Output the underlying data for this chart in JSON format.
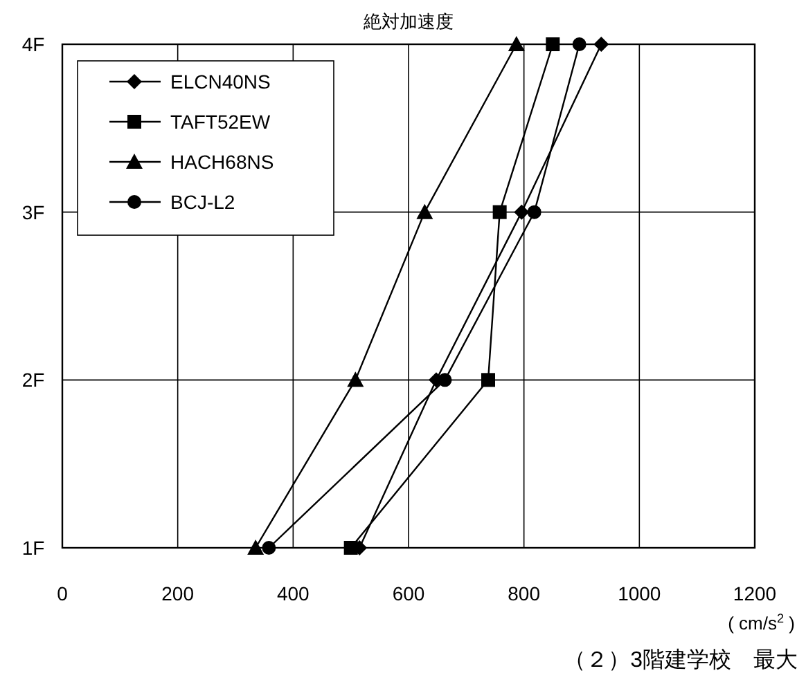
{
  "chart_data": {
    "type": "line",
    "orientation": "horizontal",
    "title": "絶対加速度",
    "xlabel": "( cm/s$^{2}$ )",
    "annotations": [
      "（２）3階建学校　最大"
    ],
    "categories": [
      "4F",
      "3F",
      "2F",
      "1F"
    ],
    "xlim": [
      0,
      1200
    ],
    "xticks": [
      0,
      200,
      400,
      600,
      800,
      1000,
      1200
    ],
    "grid": true,
    "legend": "top left",
    "line_style": "solid",
    "series": [
      {
        "name": "ELCN40NS",
        "color": "#000000",
        "marker": "diamond",
        "values": [
          934,
          796,
          648,
          515
        ]
      },
      {
        "name": "TAFT52EW",
        "color": "#000000",
        "marker": "square",
        "values": [
          850,
          758,
          738,
          500
        ]
      },
      {
        "name": "HACH68NS",
        "color": "#000000",
        "marker": "triangle",
        "values": [
          787,
          628,
          508,
          335
        ]
      },
      {
        "name": "BCJ-L2",
        "color": "#000000",
        "marker": "circle",
        "values": [
          896,
          818,
          663,
          358
        ]
      }
    ]
  }
}
